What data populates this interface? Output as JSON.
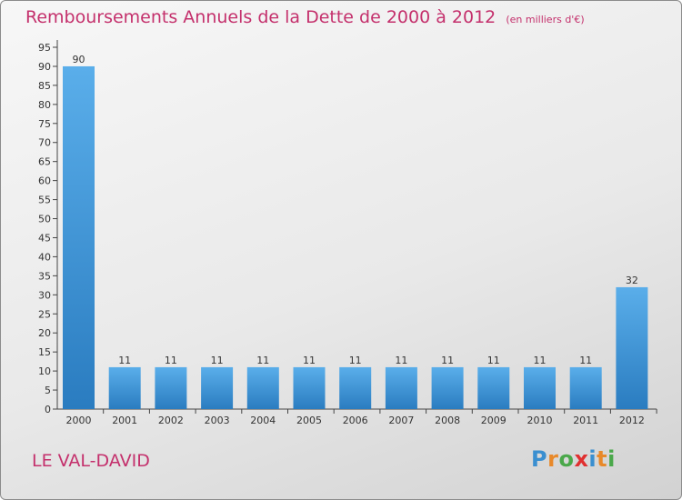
{
  "header": {
    "title": "Remboursements Annuels de la Dette de 2000 à 2012",
    "unit": "(en milliers d'€)"
  },
  "footer": {
    "commune": "LE VAL-DAVID",
    "brand_letters": [
      "P",
      "r",
      "o",
      "x",
      "i",
      "t",
      "i"
    ]
  },
  "colors": {
    "title": "#c4306c",
    "bar_light": "#5aaeea",
    "bar_dark": "#2a7cc0",
    "brand": [
      "#3a8fd0",
      "#e8892a",
      "#4aa84a",
      "#e03030",
      "#3a8fd0",
      "#e8892a",
      "#4aa84a"
    ]
  },
  "chart_data": {
    "type": "bar",
    "categories": [
      "2000",
      "2001",
      "2002",
      "2003",
      "2004",
      "2005",
      "2006",
      "2007",
      "2008",
      "2009",
      "2010",
      "2011",
      "2012"
    ],
    "values": [
      90,
      11,
      11,
      11,
      11,
      11,
      11,
      11,
      11,
      11,
      11,
      11,
      32
    ],
    "data_labels": [
      "90",
      "11",
      "11",
      "11",
      "11",
      "11",
      "11",
      "11",
      "11",
      "11",
      "11",
      "11",
      "32"
    ],
    "ylim": [
      0,
      95
    ],
    "yticks": [
      0,
      5,
      10,
      15,
      20,
      25,
      30,
      35,
      40,
      45,
      50,
      55,
      60,
      65,
      70,
      75,
      80,
      85,
      90,
      95
    ],
    "grid": false,
    "legend": "none"
  }
}
